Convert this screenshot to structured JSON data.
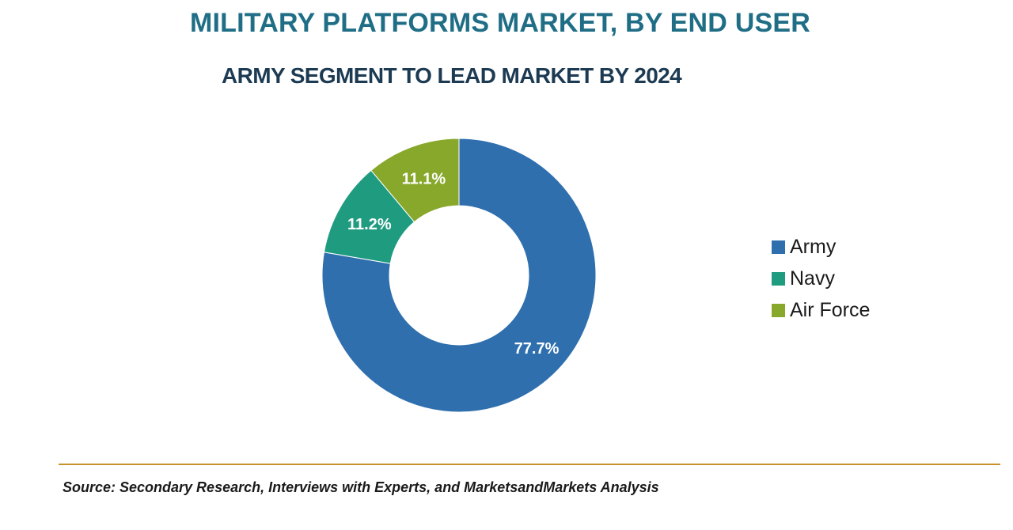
{
  "title": "MILITARY PLATFORMS MARKET, BY END USER",
  "subtitle": "ARMY SEGMENT TO LEAD MARKET BY 2024",
  "source": "Source: Secondary Research, Interviews with Experts, and MarketsandMarkets Analysis",
  "colors": {
    "title": "#1f6e86",
    "army": "#2f6fae",
    "navy": "#1f9b80",
    "air_force": "#88a82c",
    "divider": "#c9922d"
  },
  "chart_data": {
    "type": "pie",
    "donut": true,
    "title": "MILITARY PLATFORMS MARKET, BY END USER",
    "subtitle": "ARMY SEGMENT TO LEAD MARKET BY 2024",
    "categories": [
      "Army",
      "Navy",
      "Air Force"
    ],
    "values": [
      77.7,
      11.2,
      11.1
    ],
    "labels": [
      "77.7%",
      "11.2%",
      "11.1%"
    ],
    "colors": [
      "#2f6fae",
      "#1f9b80",
      "#88a82c"
    ],
    "legend_position": "right"
  }
}
